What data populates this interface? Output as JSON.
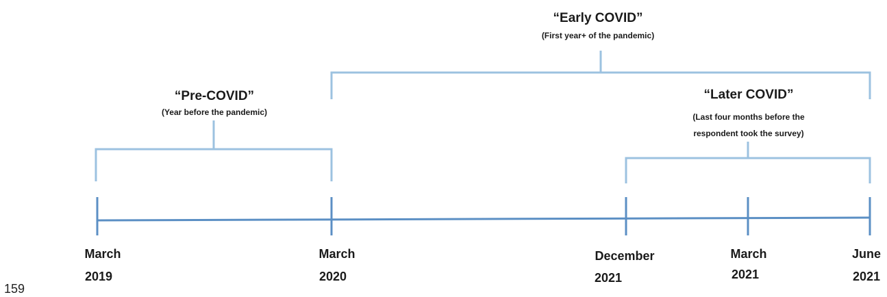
{
  "periods": {
    "pre": {
      "title": "“Pre-COVID”",
      "subtitle": "(Year before the pandemic)"
    },
    "early": {
      "title": "“Early COVID”",
      "subtitle": "(First year+ of the pandemic)"
    },
    "later": {
      "title": "“Later COVID”",
      "subtitle_line1": "(Last four months before the",
      "subtitle_line2": "respondent took the survey)"
    }
  },
  "dates": [
    {
      "month": "March",
      "year": "2019"
    },
    {
      "month": "March",
      "year": "2020"
    },
    {
      "month": "December",
      "year": "2021"
    },
    {
      "month": "March",
      "year": "2021"
    },
    {
      "month": "June",
      "year": "2021"
    }
  ],
  "page_number": "159",
  "colors": {
    "axis": "#5b8fc4",
    "bracket": "#9cc2e0"
  }
}
